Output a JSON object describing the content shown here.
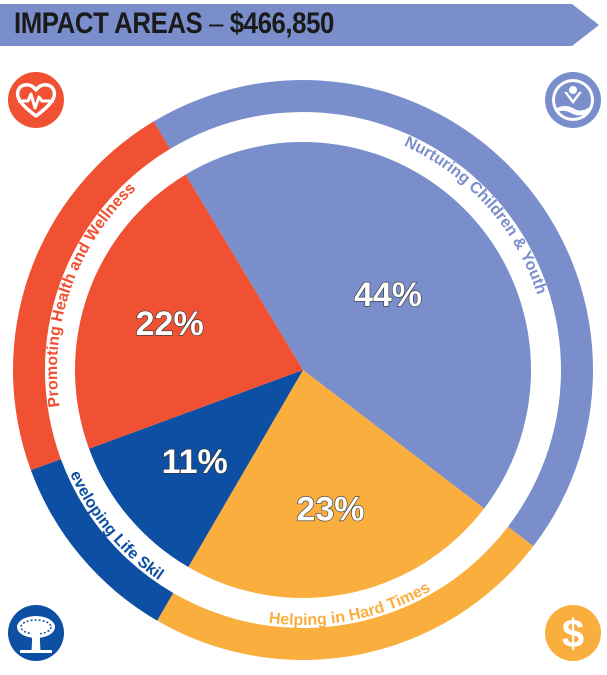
{
  "header": {
    "title": "IMPACT AREAS",
    "separator": "–",
    "amount": "$466,850"
  },
  "colors": {
    "banner": "#7a8ecb",
    "nurturing": "#7a8ecb",
    "helping": "#f9ae3e",
    "developing": "#0d4fa3",
    "promoting": "#f05133",
    "label_text_on_slice": "#ffffff"
  },
  "icons": {
    "top_left": "heart-pulse-icon",
    "top_right": "united-way-hand-icon",
    "bottom_left": "tree-icon",
    "bottom_right": "dollar-icon"
  },
  "chart_data": {
    "type": "pie",
    "title": "IMPACT AREAS – $466,850",
    "total": "$466,850",
    "slices": [
      {
        "name": "Nurturing Children & Youth",
        "value": 44,
        "label": "44%",
        "color": "#7a8ecb"
      },
      {
        "name": "Helping in Hard Times",
        "value": 23,
        "label": "23%",
        "color": "#f9ae3e"
      },
      {
        "name": "Developing Life Skills",
        "value": 11,
        "label": "11%",
        "color": "#0d4fa3"
      },
      {
        "name": "Promoting Health and Wellness",
        "value": 22,
        "label": "22%",
        "color": "#f05133"
      }
    ]
  }
}
